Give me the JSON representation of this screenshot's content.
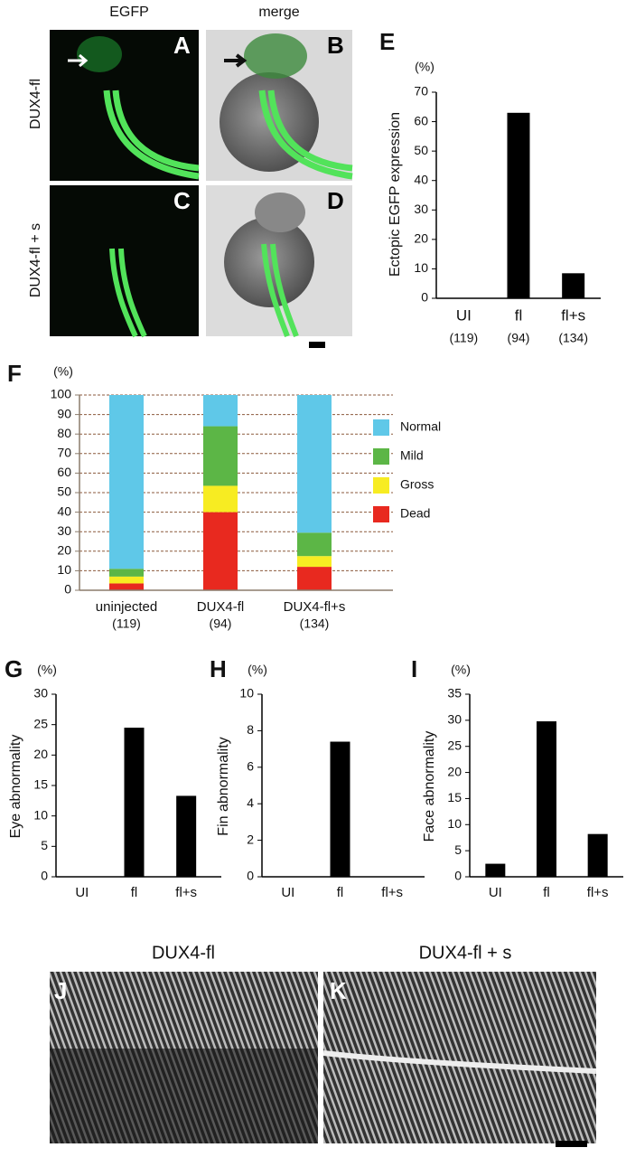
{
  "panels": {
    "column_labels": [
      "EGFP",
      "merge"
    ],
    "row_labels": [
      "DUX4-fl",
      "DUX4-fl + s"
    ],
    "image_letters": [
      "A",
      "B",
      "C",
      "D"
    ],
    "bottom_titles": [
      "DUX4-fl",
      "DUX4-fl + s"
    ],
    "bottom_letters": [
      "J",
      "K"
    ]
  },
  "chart_data": [
    {
      "type": "bar",
      "panel_label": "E",
      "unit_label": "(%)",
      "ylabel": "Ectopic EGFP expression",
      "categories": [
        "UI",
        "fl",
        "fl+s"
      ],
      "category_counts": [
        "(119)",
        "(94)",
        "(134)"
      ],
      "values": [
        0,
        63,
        8.5
      ],
      "color": "#000000",
      "ylim": [
        0,
        70
      ],
      "yticks": [
        0,
        10,
        20,
        30,
        40,
        50,
        60,
        70
      ]
    },
    {
      "type": "stacked_bar",
      "panel_label": "F",
      "unit_label": "(%)",
      "categories": [
        "uninjected",
        "DUX4-fl",
        "DUX4-fl+s"
      ],
      "category_counts": [
        "(119)",
        "(94)",
        "(134)"
      ],
      "series": [
        {
          "name": "Dead",
          "color": "#e8291f",
          "values": [
            3.5,
            40,
            12
          ]
        },
        {
          "name": "Gross",
          "color": "#f7ec22",
          "values": [
            3.5,
            13.5,
            5.5
          ]
        },
        {
          "name": "Mild",
          "color": "#5cb646",
          "values": [
            4,
            30.5,
            12
          ]
        },
        {
          "name": "Normal",
          "color": "#5fc8e8",
          "values": [
            89,
            16,
            70.5
          ]
        }
      ],
      "ylim": [
        0,
        100
      ],
      "yticks": [
        0,
        10,
        20,
        30,
        40,
        50,
        60,
        70,
        80,
        90,
        100
      ],
      "grid": true
    },
    {
      "type": "bar",
      "panel_label": "G",
      "unit_label": "(%)",
      "ylabel": "Eye abnormality",
      "categories": [
        "UI",
        "fl",
        "fl+s"
      ],
      "values": [
        0,
        24.5,
        13.3
      ],
      "color": "#000000",
      "ylim": [
        0,
        30
      ],
      "yticks": [
        0,
        5,
        10,
        15,
        20,
        25,
        30
      ]
    },
    {
      "type": "bar",
      "panel_label": "H",
      "unit_label": "(%)",
      "ylabel": "Fin abnormality",
      "categories": [
        "UI",
        "fl",
        "fl+s"
      ],
      "values": [
        0,
        7.4,
        0
      ],
      "color": "#000000",
      "ylim": [
        0,
        10
      ],
      "yticks": [
        0,
        2,
        4,
        6,
        8,
        10
      ]
    },
    {
      "type": "bar",
      "panel_label": "I",
      "unit_label": "(%)",
      "ylabel": "Face abnormality",
      "categories": [
        "UI",
        "fl",
        "fl+s"
      ],
      "values": [
        2.5,
        29.8,
        8.2
      ],
      "color": "#000000",
      "ylim": [
        0,
        35
      ],
      "yticks": [
        0,
        5,
        10,
        15,
        20,
        25,
        30,
        35
      ]
    }
  ]
}
